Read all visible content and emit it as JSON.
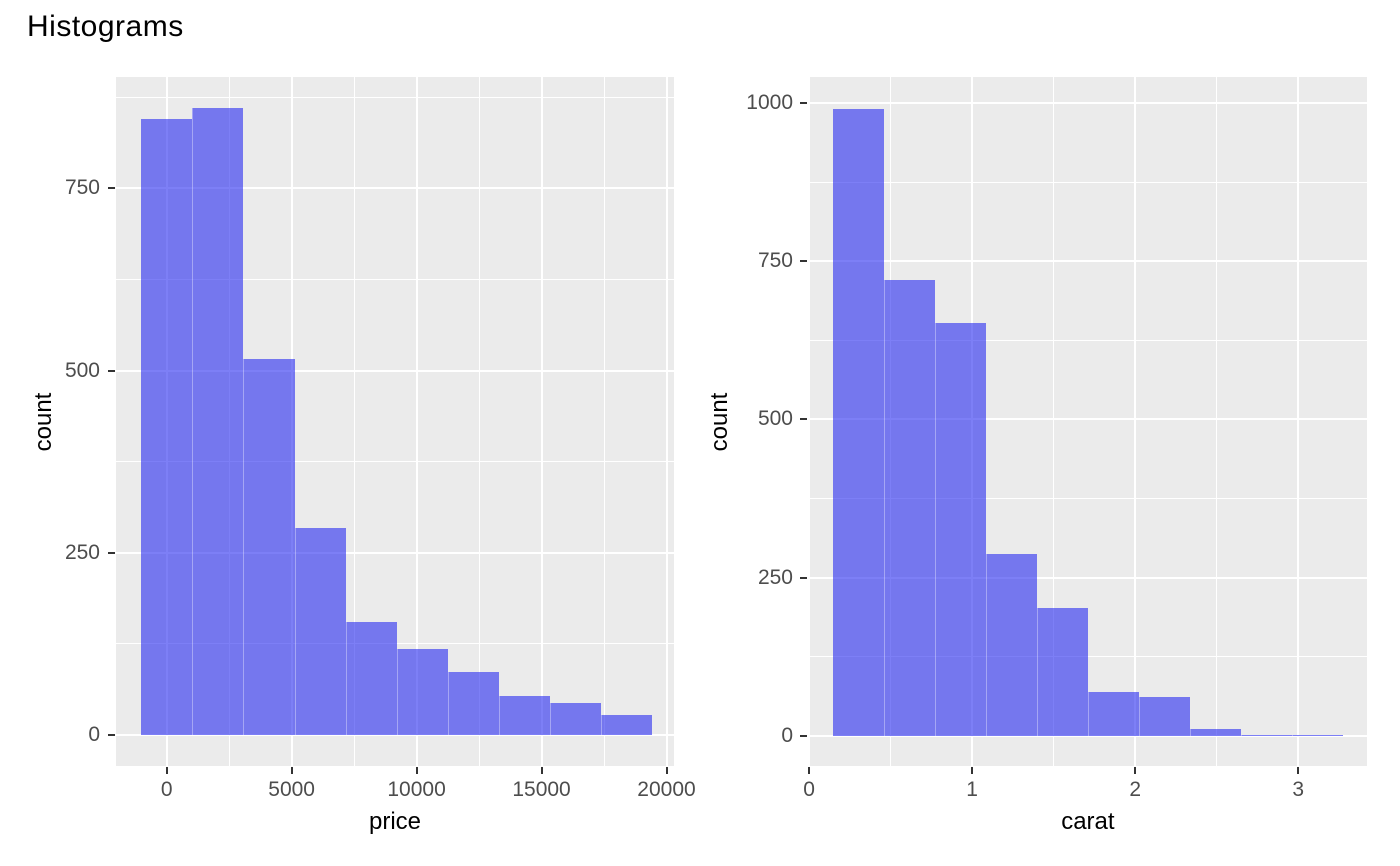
{
  "title": "Histograms",
  "colors": {
    "background": "#FFFFFF",
    "panel_bg": "#EBEBEB",
    "gridline": "#FFFFFF",
    "bar_fill": "rgba(45,48,240,0.62)",
    "bar_fill_apparent": "#7577EE",
    "tick_label": "#4D4D4D",
    "tick_mark": "#333333",
    "axis_title": "#000000",
    "title": "#000000"
  },
  "chart_data": [
    {
      "type": "bar",
      "subtype": "histogram",
      "title": "",
      "xlabel": "price",
      "ylabel": "count",
      "bin_start": -1016,
      "bin_width": 2044,
      "bin_edges": [
        -1016,
        1028,
        3072,
        5116,
        7160,
        9204,
        11248,
        13292,
        15336,
        17380,
        19424
      ],
      "counts": [
        845,
        860,
        516,
        284,
        155,
        117,
        86,
        53,
        44,
        27
      ],
      "x_ticks": [
        0,
        5000,
        10000,
        15000,
        20000
      ],
      "x_tick_labels": [
        "0",
        "5000",
        "10000",
        "15000",
        "20000"
      ],
      "y_ticks": [
        0,
        250,
        500,
        750
      ],
      "y_tick_labels": [
        "0",
        "250",
        "500",
        "750"
      ],
      "x_minor": [
        2500,
        7500,
        12500,
        17500
      ],
      "y_minor": [
        125,
        375,
        625,
        875
      ],
      "xlim": [
        -2028,
        20300
      ],
      "ylim": [
        -43,
        903
      ],
      "grid": true,
      "legend": "none"
    },
    {
      "type": "bar",
      "subtype": "histogram",
      "title": "",
      "xlabel": "carat",
      "ylabel": "count",
      "bin_start": 0.149,
      "bin_width": 0.3128,
      "bin_edges": [
        0.149,
        0.462,
        0.775,
        1.087,
        1.4,
        1.713,
        2.026,
        2.338,
        2.651,
        2.964,
        3.277
      ],
      "counts": [
        991,
        721,
        653,
        287,
        202,
        70,
        61,
        11,
        2,
        2
      ],
      "x_ticks": [
        0,
        1,
        2,
        3
      ],
      "x_tick_labels": [
        "0",
        "1",
        "2",
        "3"
      ],
      "y_ticks": [
        0,
        250,
        500,
        750,
        1000
      ],
      "y_tick_labels": [
        "0",
        "250",
        "500",
        "750",
        "1000"
      ],
      "x_minor": [
        0.5,
        1.5,
        2.5
      ],
      "y_minor": [
        125,
        375,
        625,
        875
      ],
      "xlim": [
        -0.005,
        3.425
      ],
      "ylim": [
        -47.5,
        1041
      ],
      "grid": true,
      "legend": "none"
    }
  ]
}
